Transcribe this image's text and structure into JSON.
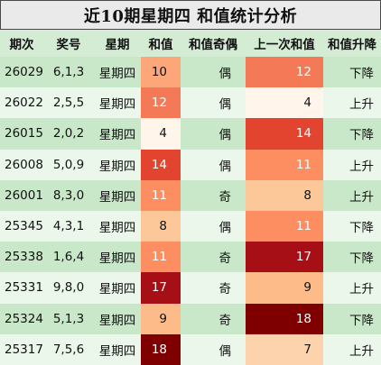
{
  "title": "近10期星期四 和值统计分析",
  "headers": [
    "期次",
    "奖号",
    "星期",
    "和值",
    "和值奇偶",
    "上一次和值",
    "和值升降"
  ],
  "colors": {
    "header_bg": "#d4ecd4",
    "row_dark": "#c9e8c9",
    "row_light": "#ebf7eb",
    "light_text": "#ffffff",
    "dark_text": "#111111"
  },
  "rows": [
    {
      "period": "26029",
      "numbers": "6,1,3",
      "weekday": "星期四",
      "sum": "10",
      "parity": "偶",
      "prev_sum": "12",
      "trend": "下降",
      "sum_color": "#fca67a",
      "prev_color": "#f47a57"
    },
    {
      "period": "26022",
      "numbers": "2,5,5",
      "weekday": "星期四",
      "sum": "12",
      "parity": "偶",
      "prev_sum": "4",
      "trend": "上升",
      "sum_color": "#f47a57",
      "prev_color": "#fff5eb"
    },
    {
      "period": "26015",
      "numbers": "2,0,2",
      "weekday": "星期四",
      "sum": "4",
      "parity": "偶",
      "prev_sum": "14",
      "trend": "下降",
      "sum_color": "#fff5eb",
      "prev_color": "#e34430"
    },
    {
      "period": "26008",
      "numbers": "5,0,9",
      "weekday": "星期四",
      "sum": "14",
      "parity": "偶",
      "prev_sum": "11",
      "trend": "上升",
      "sum_color": "#e34430",
      "prev_color": "#fc8e62"
    },
    {
      "period": "26001",
      "numbers": "8,3,0",
      "weekday": "星期四",
      "sum": "11",
      "parity": "奇",
      "prev_sum": "8",
      "trend": "上升",
      "sum_color": "#fc8e62",
      "prev_color": "#fdc899"
    },
    {
      "period": "25345",
      "numbers": "4,3,1",
      "weekday": "星期四",
      "sum": "8",
      "parity": "偶",
      "prev_sum": "11",
      "trend": "下降",
      "sum_color": "#fdc899",
      "prev_color": "#fc8e62"
    },
    {
      "period": "25338",
      "numbers": "1,6,4",
      "weekday": "星期四",
      "sum": "11",
      "parity": "奇",
      "prev_sum": "17",
      "trend": "下降",
      "sum_color": "#fc8e62",
      "prev_color": "#a50f15"
    },
    {
      "period": "25331",
      "numbers": "9,8,0",
      "weekday": "星期四",
      "sum": "17",
      "parity": "奇",
      "prev_sum": "9",
      "trend": "上升",
      "sum_color": "#a50f15",
      "prev_color": "#fdbb8a"
    },
    {
      "period": "25324",
      "numbers": "5,1,3",
      "weekday": "星期四",
      "sum": "9",
      "parity": "奇",
      "prev_sum": "18",
      "trend": "下降",
      "sum_color": "#fdbb8a",
      "prev_color": "#7f0000"
    },
    {
      "period": "25317",
      "numbers": "7,5,6",
      "weekday": "星期四",
      "sum": "18",
      "parity": "偶",
      "prev_sum": "7",
      "trend": "上升",
      "sum_color": "#7f0000",
      "prev_color": "#fdd3ad"
    }
  ]
}
